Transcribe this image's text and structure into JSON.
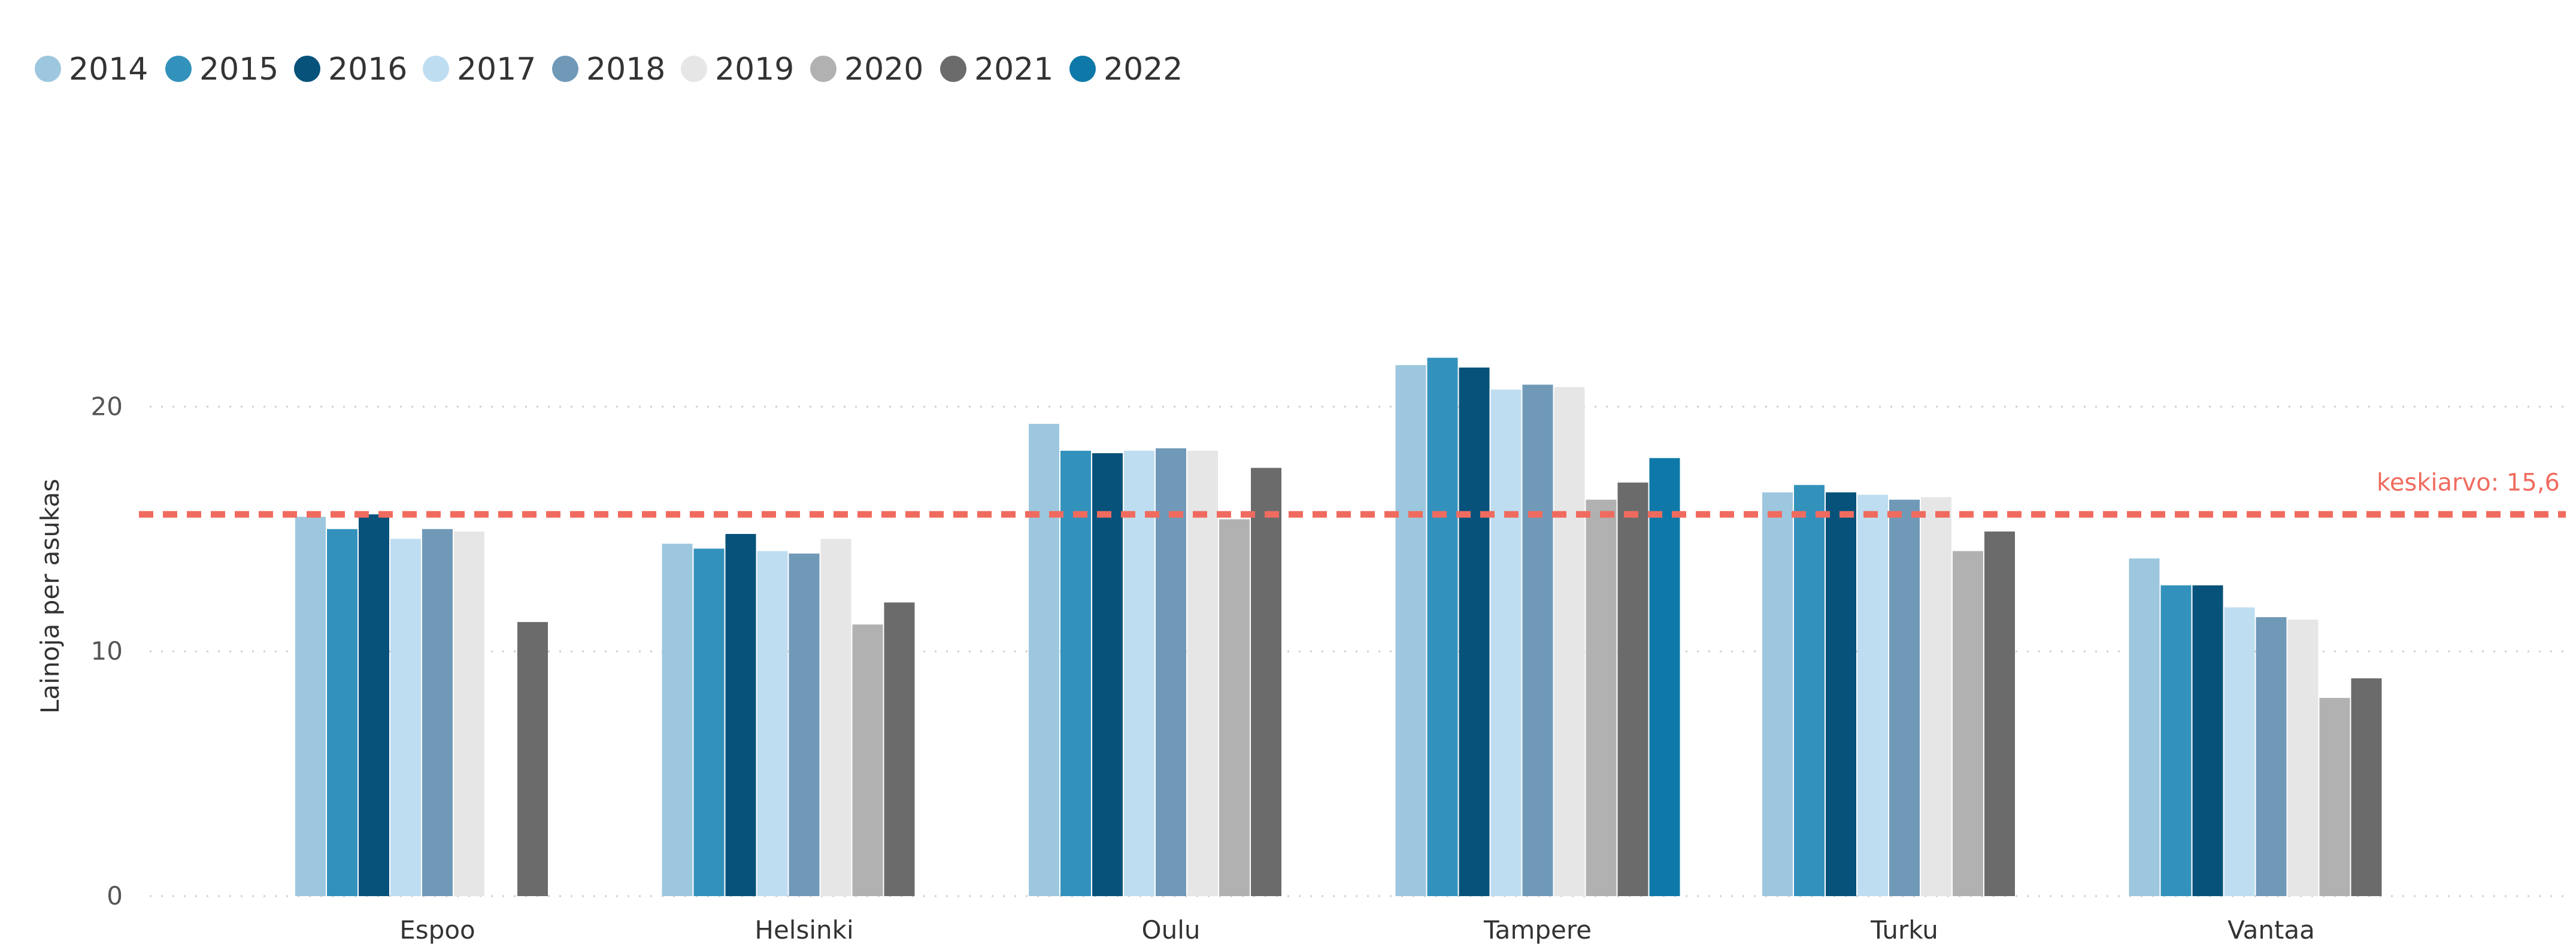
{
  "chart_data": {
    "type": "bar",
    "ylabel": "Lainoja per asukas",
    "ylim": [
      0,
      25
    ],
    "yticks": [
      0,
      10,
      20
    ],
    "grid": true,
    "legend_position": "top-left",
    "categories": [
      "Espoo",
      "Helsinki",
      "Oulu",
      "Tampere",
      "Turku",
      "Vantaa"
    ],
    "series": [
      {
        "name": "2014",
        "color": "#9DC7DE",
        "values": [
          15.5,
          14.4,
          19.3,
          21.7,
          16.5,
          13.8
        ]
      },
      {
        "name": "2015",
        "color": "#3392BC",
        "values": [
          15.0,
          14.2,
          18.2,
          22.0,
          16.8,
          12.7
        ]
      },
      {
        "name": "2016",
        "color": "#06527A",
        "values": [
          15.6,
          14.8,
          18.1,
          21.6,
          16.5,
          12.7
        ]
      },
      {
        "name": "2017",
        "color": "#BEDDF0",
        "values": [
          14.6,
          14.1,
          18.2,
          20.7,
          16.4,
          11.8
        ]
      },
      {
        "name": "2018",
        "color": "#7099B8",
        "values": [
          15.0,
          14.0,
          18.3,
          20.9,
          16.2,
          11.4
        ]
      },
      {
        "name": "2019",
        "color": "#E6E6E6",
        "values": [
          14.9,
          14.6,
          18.2,
          20.8,
          16.3,
          11.3
        ]
      },
      {
        "name": "2020",
        "color": "#B1B1B1",
        "values": [
          null,
          11.1,
          15.4,
          16.2,
          14.1,
          8.1
        ]
      },
      {
        "name": "2021",
        "color": "#6B6B6B",
        "values": [
          11.2,
          12.0,
          17.5,
          16.9,
          14.9,
          8.9
        ]
      },
      {
        "name": "2022",
        "color": "#0E79A8",
        "values": [
          null,
          null,
          null,
          17.9,
          null,
          null
        ]
      }
    ],
    "average": {
      "value": 15.6,
      "label": "keskiarvo: 15,6",
      "color": "#F06B5F"
    }
  }
}
